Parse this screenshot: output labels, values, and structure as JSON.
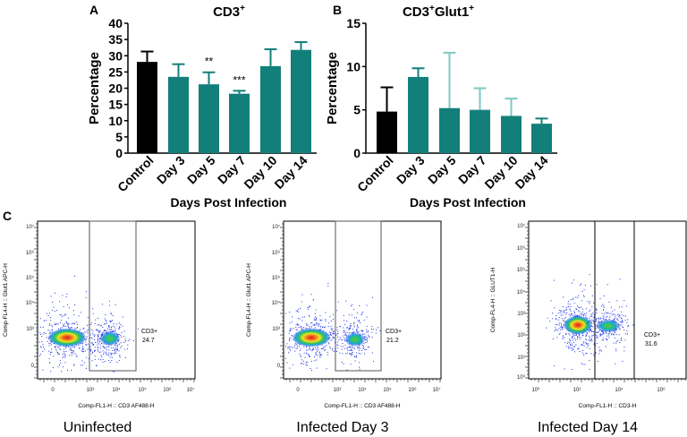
{
  "panel_labels": {
    "a": "A",
    "b": "B",
    "c": "C"
  },
  "chart_data": [
    {
      "type": "bar",
      "panel": "A",
      "title": "CD3",
      "title_sup": "+",
      "xlabel": "Days Post Infection",
      "ylabel": "Percentage",
      "ylim": [
        0,
        40
      ],
      "yticks": [
        0,
        5,
        10,
        15,
        20,
        25,
        30,
        35,
        40
      ],
      "categories": [
        "Control",
        "Day 3",
        "Day 5",
        "Day 7",
        "Day 10",
        "Day 14"
      ],
      "values": [
        28.1,
        23.5,
        21.2,
        18.3,
        26.8,
        31.8
      ],
      "error_upper": [
        31.3,
        27.4,
        24.9,
        19.2,
        32.0,
        34.2
      ],
      "significance": [
        "",
        "",
        "**",
        "***",
        "",
        ""
      ],
      "colors": [
        "#000000",
        "#137f7a",
        "#137f7a",
        "#137f7a",
        "#137f7a",
        "#137f7a"
      ]
    },
    {
      "type": "bar",
      "panel": "B",
      "title": "CD3",
      "title_sup": "+",
      "title2": "Glut1",
      "title2_sup": "+",
      "xlabel": "Days  Post Infection",
      "ylabel": "Percentage",
      "ylim": [
        0,
        15
      ],
      "yticks": [
        0,
        5,
        10,
        15
      ],
      "categories": [
        "Control",
        "Day 3",
        "Day 5",
        "Day 7",
        "Day 10",
        "Day 14"
      ],
      "values": [
        4.8,
        8.8,
        5.2,
        5.0,
        4.3,
        3.4
      ],
      "error_upper": [
        7.6,
        9.8,
        11.6,
        7.5,
        6.3,
        4.0
      ],
      "colors": [
        "#000000",
        "#137f7a",
        "#137f7a",
        "#137f7a",
        "#137f7a",
        "#137f7a"
      ]
    },
    {
      "type": "scatter",
      "panel": "C",
      "plots": [
        {
          "caption": "Uninfected",
          "xlabel": "Comp-FL1-H :: CD3 AF488-H",
          "ylabel": "Comp-FL4-H :: Glut1 APC-H",
          "gate_name": "CD3+",
          "gate_value": "24.7",
          "yticks": [
            "10⁷",
            "10⁶",
            "10⁵",
            "10⁴",
            "10³",
            "0"
          ],
          "xticks": [
            "0",
            "10³",
            "10⁴",
            "10⁵",
            "10⁶",
            "10⁷"
          ]
        },
        {
          "caption": "Infected Day 3",
          "xlabel": "Comp-FL1-H :: CD3 AF488-H",
          "ylabel": "Comp-FL4-H :: Glut1 APC-H",
          "gate_name": "CD3+",
          "gate_value": "21.2",
          "yticks": [
            "10⁷",
            "10⁶",
            "10⁵",
            "10⁴",
            "10³",
            "0"
          ],
          "xticks": [
            "0",
            "10³",
            "10⁴",
            "10⁵",
            "10⁶",
            "10⁷"
          ]
        },
        {
          "caption": "Infected Day 14",
          "xlabel": "Comp-FL1-H :: CD3-H",
          "ylabel": "Comp-FL4-H :: GLUT1-H",
          "gate_name": "CD3+",
          "gate_value": "31.6",
          "yticks": [
            "10⁷",
            "10⁶",
            "10⁵",
            "10⁴",
            "10³",
            "10²",
            "10¹",
            "10⁰"
          ],
          "xticks": [
            "10⁰",
            "10²",
            "10⁴",
            "10⁶"
          ]
        }
      ]
    }
  ]
}
